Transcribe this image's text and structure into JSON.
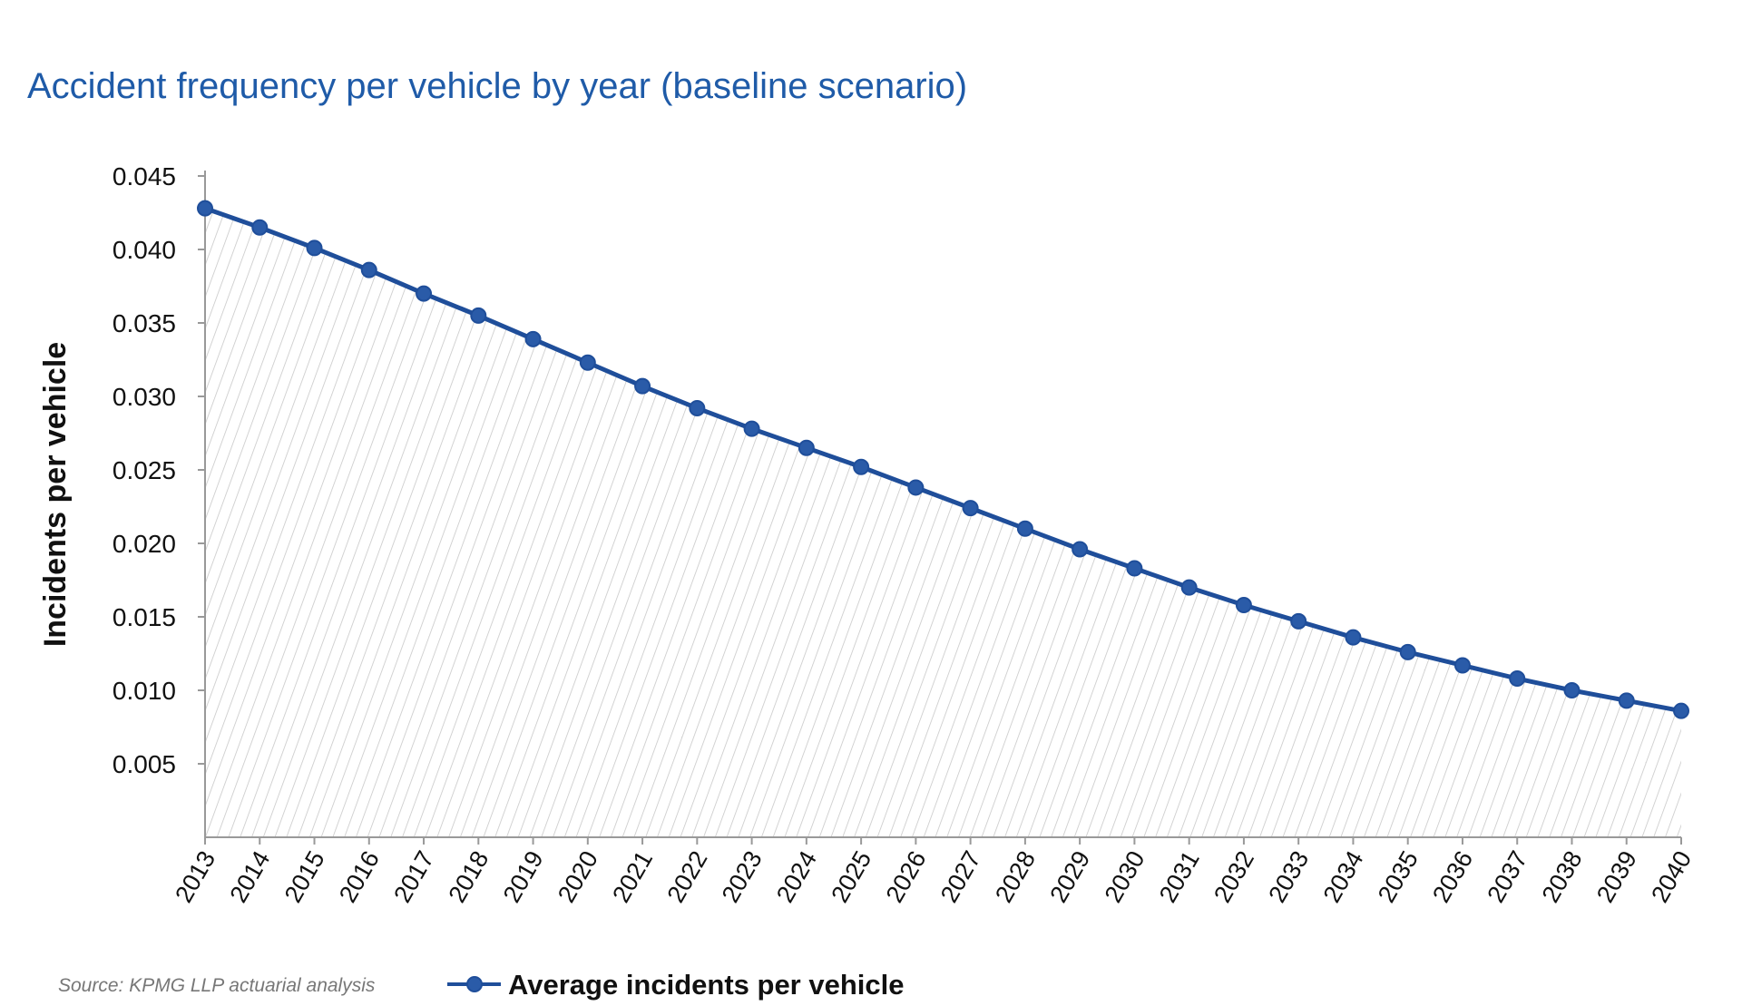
{
  "chart_data": {
    "type": "line",
    "title": "Accident frequency per vehicle by year (baseline scenario)",
    "xlabel": "",
    "ylabel": "Incidents per vehicle",
    "x": [
      "2013",
      "2014",
      "2015",
      "2016",
      "2017",
      "2018",
      "2019",
      "2020",
      "2021",
      "2022",
      "2023",
      "2024",
      "2025",
      "2026",
      "2027",
      "2028",
      "2029",
      "2030",
      "2031",
      "2032",
      "2033",
      "2034",
      "2035",
      "2036",
      "2037",
      "2038",
      "2039",
      "2040"
    ],
    "series": [
      {
        "name": "Average incidents per vehicle",
        "values": [
          0.0428,
          0.0415,
          0.0401,
          0.0386,
          0.037,
          0.0355,
          0.0339,
          0.0323,
          0.0307,
          0.0292,
          0.0278,
          0.0265,
          0.0252,
          0.0238,
          0.0224,
          0.021,
          0.0196,
          0.0183,
          0.017,
          0.0158,
          0.0147,
          0.0136,
          0.0126,
          0.0117,
          0.0108,
          0.01,
          0.0093,
          0.0086
        ]
      }
    ],
    "ylim": [
      0,
      0.045
    ],
    "yticks": [
      "0.045",
      "0.040",
      "0.035",
      "0.030",
      "0.025",
      "0.020",
      "0.015",
      "0.010",
      "0.005"
    ],
    "ytick_values": [
      0.045,
      0.04,
      0.035,
      0.03,
      0.025,
      0.02,
      0.015,
      0.01,
      0.005
    ],
    "grid": false,
    "area_fill": "hatched",
    "legend_position": "bottom",
    "source": "Source: KPMG LLP actuarial analysis"
  },
  "colors": {
    "title": "#1f5ba8",
    "line": "#1f4e9a",
    "marker": "#2a5ba8",
    "hatch": "#c8c8c8",
    "axis": "#999999",
    "source": "#777777"
  }
}
